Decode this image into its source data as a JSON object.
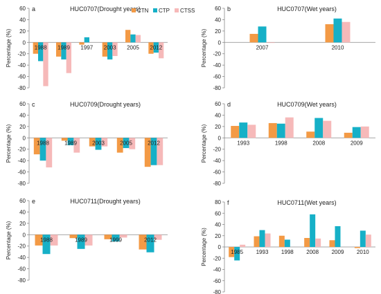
{
  "colors": {
    "CTN": "#f39a45",
    "CTP": "#16b0c7",
    "CTSS": "#f6b9b9"
  },
  "legend": [
    "CTN",
    "CTP",
    "CTSS"
  ],
  "chart_data": [
    {
      "type": "bar",
      "label": "a",
      "title": "HUC0707(Drought years)",
      "ylabel": "Percentage (%)",
      "ylim": [
        -80,
        60
      ],
      "yticks": [
        -80,
        -60,
        -40,
        -20,
        0,
        20,
        40,
        60
      ],
      "categories": [
        "1988",
        "1989",
        "1997",
        "2003",
        "2005",
        "2012"
      ],
      "series": [
        {
          "name": "CTN",
          "values": [
            -20,
            -25,
            -4,
            -25,
            22,
            -20
          ]
        },
        {
          "name": "CTP",
          "values": [
            -33,
            -30,
            9,
            -30,
            14,
            -18
          ]
        },
        {
          "name": "CTSS",
          "values": [
            -77,
            -54,
            0,
            -24,
            13,
            -28
          ]
        }
      ]
    },
    {
      "type": "bar",
      "label": "b",
      "title": "HUC0707(Wet years)",
      "ylabel": "Percentage (%)",
      "ylim": [
        -80,
        60
      ],
      "yticks": [
        -80,
        -60,
        -40,
        -20,
        0,
        20,
        40,
        60
      ],
      "categories": [
        "2007",
        "2010"
      ],
      "series": [
        {
          "name": "CTN",
          "values": [
            15,
            32
          ]
        },
        {
          "name": "CTP",
          "values": [
            28,
            42
          ]
        },
        {
          "name": "CTSS",
          "values": [
            -1,
            36
          ]
        }
      ]
    },
    {
      "type": "bar",
      "label": "c",
      "title": "HUC0709(Drought years)",
      "ylabel": "Percentage (%)",
      "ylim": [
        -80,
        60
      ],
      "yticks": [
        -80,
        -60,
        -40,
        -20,
        0,
        20,
        40,
        60
      ],
      "categories": [
        "1988",
        "1989",
        "2003",
        "2005",
        "2012"
      ],
      "series": [
        {
          "name": "CTN",
          "values": [
            -29,
            -5,
            -15,
            -26,
            -51
          ]
        },
        {
          "name": "CTP",
          "values": [
            -40,
            -13,
            -21,
            -18,
            -48
          ]
        },
        {
          "name": "CTSS",
          "values": [
            -52,
            -26,
            -15,
            -20,
            -48
          ]
        }
      ]
    },
    {
      "type": "bar",
      "label": "d",
      "title": "HUC0709(Wet years)",
      "ylabel": "Percentage (%)",
      "ylim": [
        -80,
        60
      ],
      "yticks": [
        -80,
        -60,
        -40,
        -20,
        0,
        20,
        40,
        60
      ],
      "categories": [
        "1993",
        "1998",
        "2008",
        "2009"
      ],
      "series": [
        {
          "name": "CTN",
          "values": [
            21,
            26,
            11,
            9
          ]
        },
        {
          "name": "CTP",
          "values": [
            27,
            25,
            35,
            19
          ]
        },
        {
          "name": "CTSS",
          "values": [
            23,
            36,
            30,
            20
          ]
        }
      ]
    },
    {
      "type": "bar",
      "label": "e",
      "title": "HUC0711(Drought years)",
      "ylabel": "Percentage (%)",
      "ylim": [
        -80,
        60
      ],
      "yticks": [
        -80,
        -60,
        -40,
        -20,
        0,
        20,
        40,
        60
      ],
      "categories": [
        "1988",
        "1989",
        "1999",
        "2012"
      ],
      "series": [
        {
          "name": "CTN",
          "values": [
            -19,
            -6,
            -8,
            -26
          ]
        },
        {
          "name": "CTP",
          "values": [
            -34,
            -25,
            -12,
            -31
          ]
        },
        {
          "name": "CTSS",
          "values": [
            -19,
            -19,
            -5,
            -9
          ]
        }
      ]
    },
    {
      "type": "bar",
      "label": "f",
      "title": "HUC0711(Wet years)",
      "ylabel": "Percentage (%)",
      "ylim": [
        -80,
        80
      ],
      "yticks": [
        -80,
        -60,
        -40,
        -20,
        0,
        20,
        40,
        60,
        80
      ],
      "categories": [
        "1985",
        "1993",
        "1998",
        "2008",
        "2009",
        "2010"
      ],
      "series": [
        {
          "name": "CTN",
          "values": [
            -18,
            19,
            20,
            16,
            12,
            -2
          ]
        },
        {
          "name": "CTP",
          "values": [
            -24,
            30,
            13,
            58,
            37,
            29
          ]
        },
        {
          "name": "CTSS",
          "values": [
            4,
            24,
            0,
            15,
            0,
            22
          ]
        }
      ]
    }
  ]
}
